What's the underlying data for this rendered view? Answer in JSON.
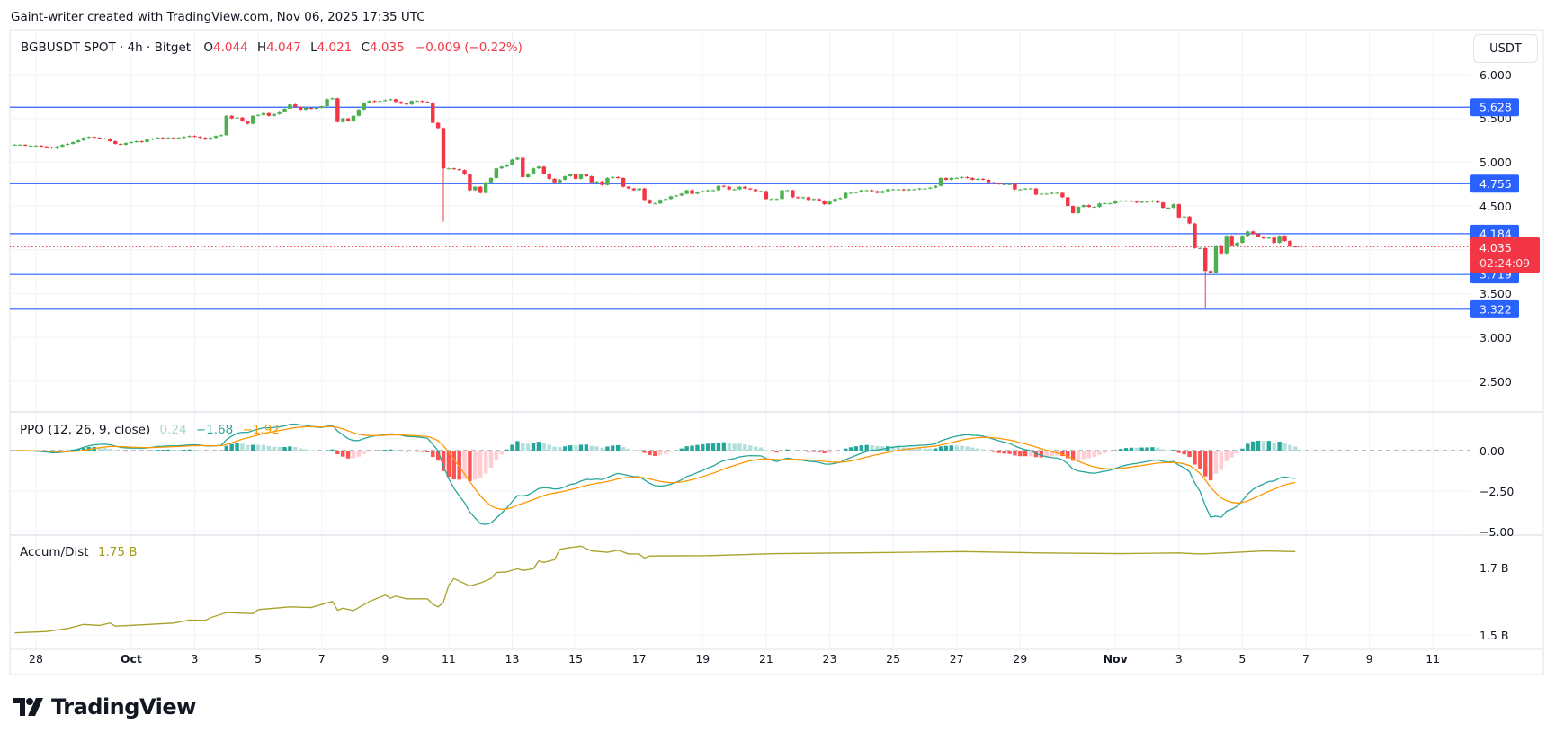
{
  "header": {
    "attribution": "Gaint-writer created with TradingView.com, Nov 06, 2025 17:35 UTC"
  },
  "symbol": {
    "name": "BGBUSDT SPOT · 4h · Bitget",
    "open_label": "O",
    "open": "4.044",
    "high_label": "H",
    "high": "4.047",
    "low_label": "L",
    "low": "4.021",
    "close_label": "C",
    "close": "4.035",
    "change": "−0.009 (−0.22%)"
  },
  "currency_button": "USDT",
  "colors": {
    "up": "#4caf50",
    "down": "#f23645",
    "level_line": "#2962ff",
    "ppo_line": "#26a69a",
    "signal_line": "#ff9800",
    "hist_up_strong": "#26a69a",
    "hist_up_weak": "#b2dfdb",
    "hist_down_strong": "#ff5252",
    "hist_down_weak": "#ffcdd2",
    "ad_line": "#a8a22a"
  },
  "price_axis": {
    "ticks": [
      "6.000",
      "5.500",
      "5.000",
      "4.500",
      "3.500",
      "3.000",
      "2.500"
    ],
    "levels": [
      "5.628",
      "4.755",
      "4.184",
      "3.719",
      "3.322"
    ],
    "current_price": "4.035",
    "countdown": "02:24:09"
  },
  "ppo": {
    "title": "PPO (12, 26, 9, close)",
    "hist_value": "0.24",
    "ppo_value": "−1.68",
    "signal_value": "−1.92",
    "axis_ticks": [
      "0.00",
      "−2.50",
      "−5.00"
    ]
  },
  "ad": {
    "title": "Accum/Dist",
    "value": "1.75 B",
    "axis_ticks": [
      "1.7 B",
      "1.5 B"
    ]
  },
  "chart_data": {
    "type": "candlestick",
    "title": "BGBUSDT SPOT · 4h · Bitget",
    "interval": "4h",
    "start": "2025-09-27T08:00",
    "x_tick_labels": [
      "28",
      "Oct",
      "3",
      "5",
      "7",
      "9",
      "11",
      "13",
      "15",
      "17",
      "19",
      "21",
      "23",
      "25",
      "27",
      "29",
      "Nov",
      "3",
      "5",
      "7",
      "9",
      "11"
    ],
    "ylim": [
      2.3,
      6.1
    ],
    "grid": true,
    "horizontal_levels": [
      5.628,
      4.755,
      4.184,
      3.719,
      3.322
    ],
    "closes": [
      5.2,
      5.2,
      5.19,
      5.19,
      5.19,
      5.18,
      5.17,
      5.16,
      5.18,
      5.2,
      5.21,
      5.23,
      5.25,
      5.28,
      5.29,
      5.28,
      5.27,
      5.27,
      5.24,
      5.21,
      5.2,
      5.22,
      5.23,
      5.24,
      5.23,
      5.26,
      5.27,
      5.28,
      5.27,
      5.28,
      5.27,
      5.28,
      5.29,
      5.3,
      5.29,
      5.28,
      5.26,
      5.28,
      5.3,
      5.31,
      5.53,
      5.5,
      5.51,
      5.47,
      5.44,
      5.53,
      5.54,
      5.56,
      5.53,
      5.55,
      5.58,
      5.61,
      5.66,
      5.63,
      5.6,
      5.62,
      5.61,
      5.62,
      5.64,
      5.72,
      5.73,
      5.46,
      5.5,
      5.47,
      5.53,
      5.6,
      5.68,
      5.7,
      5.69,
      5.7,
      5.71,
      5.72,
      5.69,
      5.67,
      5.66,
      5.7,
      5.7,
      5.69,
      5.68,
      5.45,
      5.39,
      4.93,
      4.93,
      4.92,
      4.91,
      4.86,
      4.68,
      4.72,
      4.65,
      4.77,
      4.82,
      4.93,
      4.95,
      4.97,
      5.03,
      5.05,
      4.83,
      4.87,
      4.93,
      4.95,
      4.87,
      4.81,
      4.77,
      4.8,
      4.84,
      4.86,
      4.81,
      4.86,
      4.84,
      4.77,
      4.78,
      4.74,
      4.82,
      4.83,
      4.82,
      4.72,
      4.7,
      4.68,
      4.7,
      4.57,
      4.53,
      4.53,
      4.57,
      4.58,
      4.61,
      4.62,
      4.64,
      4.68,
      4.64,
      4.66,
      4.67,
      4.68,
      4.68,
      4.73,
      4.72,
      4.69,
      4.69,
      4.72,
      4.7,
      4.69,
      4.67,
      4.67,
      4.58,
      4.58,
      4.58,
      4.68,
      4.68,
      4.6,
      4.59,
      4.6,
      4.57,
      4.58,
      4.56,
      4.52,
      4.55,
      4.58,
      4.59,
      4.65,
      4.65,
      4.66,
      4.68,
      4.68,
      4.67,
      4.65,
      4.67,
      4.69,
      4.69,
      4.69,
      4.68,
      4.69,
      4.69,
      4.7,
      4.7,
      4.71,
      4.73,
      4.82,
      4.8,
      4.82,
      4.82,
      4.83,
      4.82,
      4.8,
      4.81,
      4.8,
      4.77,
      4.76,
      4.75,
      4.75,
      4.75,
      4.69,
      4.69,
      4.7,
      4.7,
      4.63,
      4.64,
      4.64,
      4.65,
      4.65,
      4.6,
      4.5,
      4.42,
      4.49,
      4.51,
      4.49,
      4.49,
      4.53,
      4.53,
      4.53,
      4.56,
      4.56,
      4.56,
      4.55,
      4.54,
      4.55,
      4.55,
      4.56,
      4.54,
      4.48,
      4.48,
      4.52,
      4.37,
      4.38,
      4.3,
      4.02,
      4.02,
      3.76,
      3.74,
      4.05,
      3.96,
      4.16,
      4.05,
      4.08,
      4.16,
      4.21,
      4.18,
      4.15,
      4.13,
      4.14,
      4.08,
      4.16,
      4.1,
      4.04,
      4.035
    ],
    "first_open": 5.2,
    "long_lower_wicks": [
      {
        "time": "2025-10-10T20:00",
        "low": 4.32
      },
      {
        "time": "2025-11-03T20:00",
        "low": 3.33
      }
    ],
    "ppo_params": [
      12,
      26,
      9
    ],
    "ppo_ylim": [
      -5,
      2
    ],
    "ad_ylim": [
      1.45,
      1.8
    ],
    "ad_points": [
      [
        "09-27 08",
        1.507
      ],
      [
        "09-28 08",
        1.511
      ],
      [
        "09-29 00",
        1.52
      ],
      [
        "09-29 12",
        1.532
      ],
      [
        "09-30 00",
        1.529
      ],
      [
        "09-30 08",
        1.536
      ],
      [
        "09-30 12",
        1.527
      ],
      [
        "10-01 04",
        1.53
      ],
      [
        "10-02 08",
        1.536
      ],
      [
        "10-02 20",
        1.545
      ],
      [
        "10-03 08",
        1.544
      ],
      [
        "10-03 12",
        1.552
      ],
      [
        "10-04 00",
        1.567
      ],
      [
        "10-04 20",
        1.564
      ],
      [
        "10-05 00",
        1.576
      ],
      [
        "10-06 00",
        1.584
      ],
      [
        "10-06 16",
        1.582
      ],
      [
        "10-07 08",
        1.6
      ],
      [
        "10-07 12",
        1.574
      ],
      [
        "10-07 16",
        1.58
      ],
      [
        "10-08 00",
        1.573
      ],
      [
        "10-08 12",
        1.6
      ],
      [
        "10-09 00",
        1.619
      ],
      [
        "10-09 04",
        1.61
      ],
      [
        "10-09 08",
        1.616
      ],
      [
        "10-09 16",
        1.608
      ],
      [
        "10-10 08",
        1.608
      ],
      [
        "10-10 12",
        1.592
      ],
      [
        "10-10 16",
        1.584
      ],
      [
        "10-10 20",
        1.597
      ],
      [
        "10-11 00",
        1.648
      ],
      [
        "10-11 04",
        1.668
      ],
      [
        "10-11 16",
        1.646
      ],
      [
        "10-12 00",
        1.655
      ],
      [
        "10-12 08",
        1.668
      ],
      [
        "10-12 12",
        1.686
      ],
      [
        "10-12 20",
        1.688
      ],
      [
        "10-13 04",
        1.697
      ],
      [
        "10-13 08",
        1.692
      ],
      [
        "10-13 16",
        1.697
      ],
      [
        "10-13 20",
        1.72
      ],
      [
        "10-14 00",
        1.716
      ],
      [
        "10-14 08",
        1.724
      ],
      [
        "10-14 12",
        1.755
      ],
      [
        "10-14 20",
        1.76
      ],
      [
        "10-15 04",
        1.764
      ],
      [
        "10-15 12",
        1.75
      ],
      [
        "10-16 00",
        1.746
      ],
      [
        "10-16 08",
        1.752
      ],
      [
        "10-16 16",
        1.741
      ],
      [
        "10-17 00",
        1.741
      ],
      [
        "10-17 04",
        1.729
      ],
      [
        "10-17 08",
        1.735
      ],
      [
        "10-19 04",
        1.736
      ],
      [
        "10-21 08",
        1.742
      ],
      [
        "10-24 16",
        1.745
      ],
      [
        "10-27 04",
        1.748
      ],
      [
        "10-29 16",
        1.744
      ],
      [
        "11-01 04",
        1.742
      ],
      [
        "11-03 00",
        1.744
      ],
      [
        "11-03 16",
        1.741
      ],
      [
        "11-04 16",
        1.745
      ],
      [
        "11-05 16",
        1.75
      ],
      [
        "11-06 16",
        1.748
      ]
    ]
  },
  "branding": {
    "logo_text": "TradingView"
  }
}
